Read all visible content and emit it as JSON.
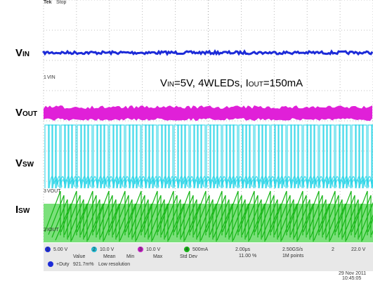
{
  "status": {
    "brand": "Tek",
    "state": "Stop"
  },
  "labels": [
    {
      "main": "V",
      "sub": "IN"
    },
    {
      "main": "V",
      "sub": "OUT"
    },
    {
      "main": "V",
      "sub": "SW"
    },
    {
      "main": "I",
      "sub": "SW"
    }
  ],
  "annotation": [
    {
      "main": "V",
      "sub": "IN"
    },
    {
      "main": "=5V, 4WLEDs, I",
      "sub": "OUT"
    },
    {
      "main": "=150mA",
      "sub": ""
    }
  ],
  "markers": [
    {
      "num": "1",
      "text": "VIN"
    },
    {
      "num": "3",
      "text": "VOUT"
    },
    {
      "num": "2",
      "text": "IOUT"
    }
  ],
  "panel": {
    "channels": [
      {
        "num": "1",
        "scale": "5.00 V"
      },
      {
        "num": "2",
        "scale": "10.0 V"
      },
      {
        "num": "3",
        "scale": "10.0 V"
      },
      {
        "num": "4",
        "scale": "500mA"
      }
    ],
    "time": "2.00μs",
    "trigger_pos": "11.00 %",
    "rate": "2.50GS/s",
    "points": "1M points",
    "trigger_ch": "2",
    "trigger_level": "22.0 V",
    "meas_headers": [
      "Value",
      "Mean",
      "Min",
      "Max",
      "Std Dev"
    ],
    "meas_name": "+Duty",
    "meas_value": "921.7m%",
    "meas_note": "Low resolution",
    "date": "29 Nov 2011",
    "clock": "10:45:05"
  }
}
